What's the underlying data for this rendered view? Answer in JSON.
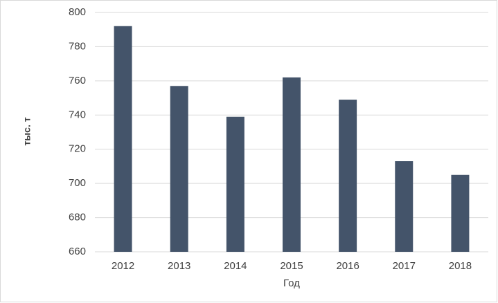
{
  "chart_data": {
    "type": "bar",
    "x_label": "Год",
    "y_label": "тыс. т",
    "categories": [
      "2012",
      "2013",
      "2014",
      "2015",
      "2016",
      "2017",
      "2018"
    ],
    "values": [
      792,
      757,
      739,
      762,
      749,
      713,
      705
    ],
    "color": "#44546a",
    "ylim": [
      660,
      800
    ],
    "yticks": [
      660,
      680,
      700,
      720,
      740,
      760,
      780,
      800
    ],
    "grid": true
  }
}
